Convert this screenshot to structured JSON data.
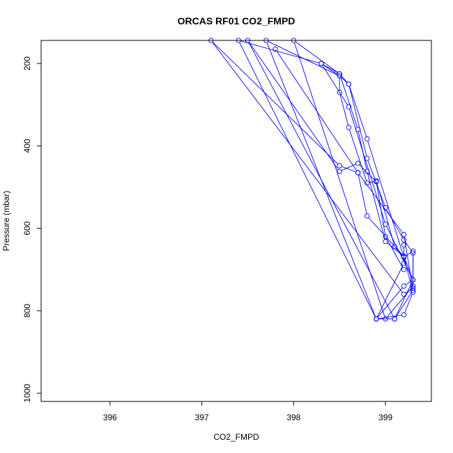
{
  "chart_data": {
    "type": "line",
    "title": "ORCAS RF01 CO2_FMPD",
    "xlabel": "CO2_FMPD",
    "ylabel": "Pressure (mbar)",
    "xlim": [
      395.25,
      399.5
    ],
    "ylim": [
      1020,
      144
    ],
    "y_reversed": true,
    "x_ticks": [
      396,
      397,
      398,
      399
    ],
    "y_ticks": [
      200,
      400,
      600,
      800,
      1000
    ],
    "grid": false,
    "marker": "open-circle",
    "series": [
      {
        "color": "#0000ff",
        "x": [
          397.8,
          398.7,
          399.2,
          399.3,
          399.1,
          398.9,
          399.2,
          399.3,
          399.0,
          398.6,
          398.3,
          398.5,
          398.5,
          398.6,
          398.8,
          398.9,
          399.1,
          399.2,
          399.3,
          399.2,
          398.9,
          397.7,
          398.5,
          398.6,
          398.8,
          399.0,
          399.2,
          399.3,
          399.3,
          399.0,
          398.0,
          398.5,
          398.6,
          398.8,
          399.2,
          399.3,
          399.3,
          399.2,
          397.1,
          398.5,
          398.7,
          398.8,
          399.2,
          399.2,
          399.2,
          398.9,
          397.4,
          398.3,
          398.5,
          398.7,
          398.8,
          399.0,
          399.2,
          399.3,
          399.1,
          397.5,
          398.5,
          398.7,
          398.9,
          399.0,
          399.2
        ],
        "y": [
          165,
          465,
          615,
          750,
          820,
          820,
          740,
          725,
          590,
          305,
          200,
          230,
          270,
          355,
          490,
          485,
          645,
          670,
          755,
          810,
          820,
          144,
          230,
          250,
          430,
          550,
          628,
          660,
          740,
          820,
          144,
          225,
          250,
          383,
          670,
          655,
          745,
          760,
          144,
          448,
          465,
          570,
          668,
          640,
          685,
          820,
          144,
          200,
          225,
          360,
          462,
          632,
          668,
          725,
          820,
          144,
          462,
          442,
          487,
          620,
          700
        ]
      }
    ]
  }
}
